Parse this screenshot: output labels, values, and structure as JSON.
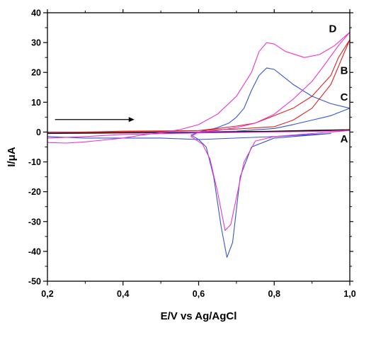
{
  "chart_data": {
    "type": "line",
    "xlabel": "E/V vs Ag/AgCl",
    "ylabel": "I/μA",
    "xlim": [
      0.2,
      1.0
    ],
    "ylim": [
      -50,
      40
    ],
    "x_ticks": [
      0.2,
      0.4,
      0.6,
      0.8,
      1.0
    ],
    "x_tick_labels": [
      "0,2",
      "0,4",
      "0,6",
      "0,8",
      "1,0"
    ],
    "y_ticks": [
      -50,
      -40,
      -30,
      -20,
      -10,
      0,
      10,
      20,
      30,
      40
    ],
    "y_tick_labels": [
      "-50",
      "-40",
      "-30",
      "-20",
      "-10",
      "0",
      "10",
      "20",
      "30",
      "40"
    ],
    "grid": false,
    "legend": "none",
    "scan_arrow": {
      "from": [
        0.22,
        4.2
      ],
      "to": [
        0.43,
        4.2
      ]
    },
    "series": [
      {
        "name": "A",
        "color": "#000000",
        "label_at": [
          0.985,
          -3.5
        ],
        "points": [
          [
            0.2,
            -0.5
          ],
          [
            0.4,
            -0.3
          ],
          [
            0.6,
            -0.1
          ],
          [
            0.8,
            0.2
          ],
          [
            0.9,
            0.4
          ],
          [
            1.0,
            0.8
          ],
          [
            0.9,
            0.6
          ],
          [
            0.8,
            0.3
          ],
          [
            0.6,
            0
          ],
          [
            0.4,
            -0.2
          ],
          [
            0.2,
            -0.4
          ]
        ]
      },
      {
        "name": "C",
        "color": "#3355cc",
        "label_at": [
          0.985,
          10.5
        ],
        "points": [
          [
            0.2,
            0
          ],
          [
            0.3,
            0
          ],
          [
            0.4,
            0
          ],
          [
            0.5,
            0
          ],
          [
            0.6,
            0
          ],
          [
            0.7,
            0.3
          ],
          [
            0.8,
            1.2
          ],
          [
            0.85,
            2.5
          ],
          [
            0.9,
            4
          ],
          [
            0.95,
            5.5
          ],
          [
            1.0,
            8
          ],
          [
            0.95,
            9.5
          ],
          [
            0.9,
            12
          ],
          [
            0.85,
            16
          ],
          [
            0.8,
            21
          ],
          [
            0.78,
            21.5
          ],
          [
            0.76,
            19
          ],
          [
            0.74,
            14
          ],
          [
            0.72,
            8
          ],
          [
            0.7,
            5
          ],
          [
            0.68,
            3
          ],
          [
            0.65,
            1.5
          ],
          [
            0.62,
            0.5
          ],
          [
            0.6,
            0
          ],
          [
            0.58,
            -1
          ],
          [
            0.6,
            -2.5
          ],
          [
            0.62,
            -5
          ],
          [
            0.64,
            -15
          ],
          [
            0.66,
            -32
          ],
          [
            0.675,
            -42
          ],
          [
            0.69,
            -37
          ],
          [
            0.71,
            -15
          ],
          [
            0.74,
            -5
          ],
          [
            0.8,
            -2
          ],
          [
            0.9,
            -1
          ],
          [
            0.95,
            -0.5
          ],
          [
            0.9,
            -0.8
          ],
          [
            0.8,
            -1.5
          ],
          [
            0.6,
            -2.5
          ],
          [
            0.5,
            -2
          ],
          [
            0.4,
            -2
          ],
          [
            0.3,
            -2
          ],
          [
            0.2,
            -1.5
          ]
        ]
      },
      {
        "name": "B",
        "color": "#dd2222",
        "label_at": [
          0.985,
          19.5
        ],
        "points": [
          [
            0.2,
            -0.3
          ],
          [
            0.3,
            0
          ],
          [
            0.4,
            0.3
          ],
          [
            0.5,
            0.4
          ],
          [
            0.6,
            0.5
          ],
          [
            0.7,
            1
          ],
          [
            0.8,
            1.8
          ],
          [
            0.85,
            4
          ],
          [
            0.9,
            8
          ],
          [
            0.95,
            16
          ],
          [
            1.0,
            31
          ],
          [
            0.97,
            25
          ],
          [
            0.95,
            19
          ],
          [
            0.9,
            12
          ],
          [
            0.85,
            8
          ],
          [
            0.8,
            5.5
          ],
          [
            0.75,
            3
          ],
          [
            0.7,
            2
          ],
          [
            0.65,
            1.2
          ],
          [
            0.6,
            0.5
          ],
          [
            0.5,
            0.2
          ],
          [
            0.4,
            0
          ],
          [
            0.3,
            -0.1
          ],
          [
            0.2,
            -0.2
          ]
        ]
      },
      {
        "name": "D",
        "color": "#ee33cc",
        "label_at": [
          0.955,
          33.5
        ],
        "points": [
          [
            0.2,
            -3.5
          ],
          [
            0.25,
            -3.7
          ],
          [
            0.3,
            -3.3
          ],
          [
            0.4,
            -2
          ],
          [
            0.45,
            -1
          ],
          [
            0.5,
            -0.2
          ],
          [
            0.55,
            0.8
          ],
          [
            0.6,
            2.5
          ],
          [
            0.65,
            6
          ],
          [
            0.7,
            12
          ],
          [
            0.74,
            20
          ],
          [
            0.76,
            27
          ],
          [
            0.78,
            30
          ],
          [
            0.8,
            29.5
          ],
          [
            0.83,
            27
          ],
          [
            0.88,
            25
          ],
          [
            0.92,
            26
          ],
          [
            0.96,
            29
          ],
          [
            1.0,
            33.5
          ],
          [
            0.97,
            29
          ],
          [
            0.93,
            22
          ],
          [
            0.9,
            17
          ],
          [
            0.85,
            11
          ],
          [
            0.8,
            6
          ],
          [
            0.75,
            3
          ],
          [
            0.7,
            1.5
          ],
          [
            0.65,
            0.5
          ],
          [
            0.6,
            0
          ],
          [
            0.58,
            -1.5
          ],
          [
            0.61,
            -4
          ],
          [
            0.63,
            -9
          ],
          [
            0.65,
            -20
          ],
          [
            0.67,
            -33
          ],
          [
            0.685,
            -31
          ],
          [
            0.7,
            -22
          ],
          [
            0.72,
            -10
          ],
          [
            0.75,
            -3
          ],
          [
            0.8,
            -1.5
          ],
          [
            0.9,
            -0.5
          ],
          [
            1.0,
            0.5
          ],
          [
            0.9,
            0.2
          ],
          [
            0.6,
            -0.3
          ],
          [
            0.4,
            -0.8
          ],
          [
            0.3,
            -1.5
          ],
          [
            0.2,
            -2
          ]
        ]
      }
    ]
  }
}
